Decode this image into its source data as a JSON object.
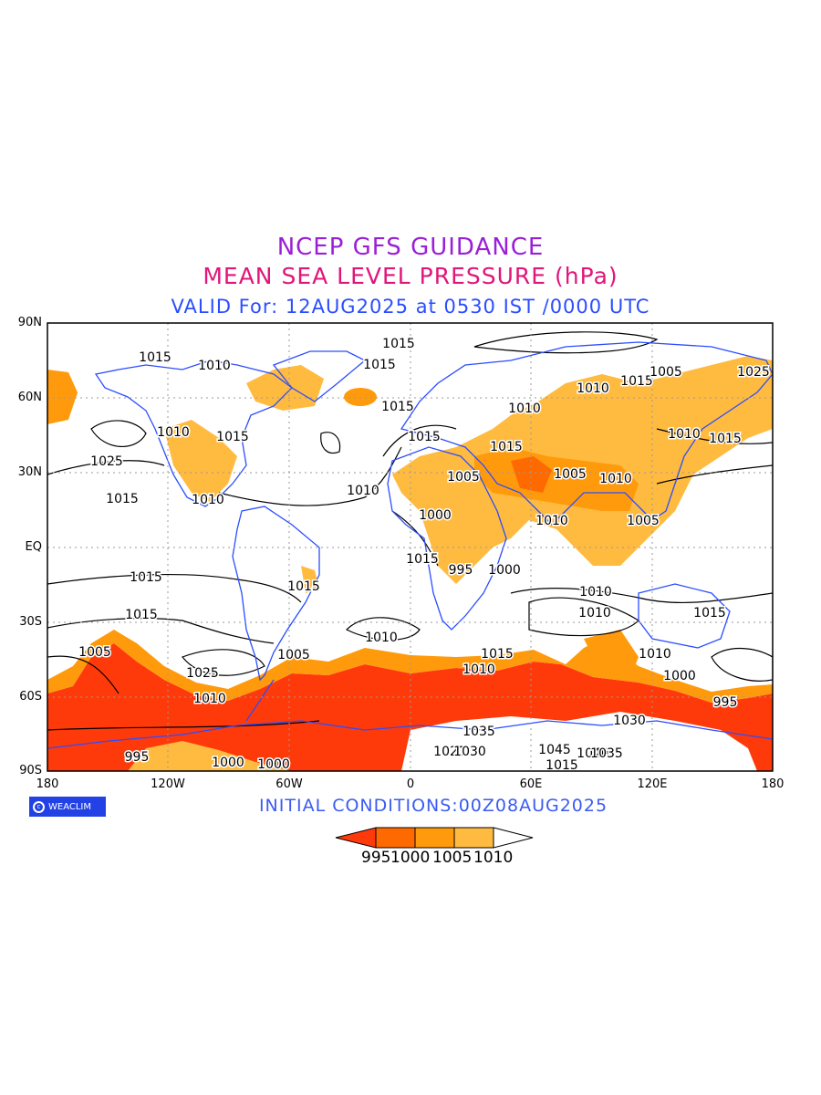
{
  "titles": {
    "line1": "NCEP GFS GUIDANCE",
    "line2": "MEAN SEA LEVEL PRESSURE (hPa)",
    "line3": "VALID For: 12AUG2025 at 0530 IST /0000 UTC"
  },
  "axes": {
    "lat_labels": [
      "90N",
      "60N",
      "30N",
      "EQ",
      "30S",
      "60S",
      "90S"
    ],
    "lon_labels": [
      "180",
      "120W",
      "60W",
      "0",
      "60E",
      "120E",
      "180"
    ]
  },
  "initial_conditions": "INITIAL CONDITIONS:00Z08AUG2025",
  "logo_text": "WEACLIM",
  "colorbar": {
    "labels": [
      "995",
      "1000",
      "1005",
      "1010"
    ],
    "colors": [
      "#ff3a0a",
      "#ff6a00",
      "#ff9a0c",
      "#ffbb40",
      "#ffffff"
    ]
  },
  "contour_labels": [
    "1015",
    "1015",
    "1010",
    "1025",
    "1015",
    "1015",
    "1015",
    "1010",
    "1015",
    "1010",
    "1010",
    "1015",
    "1005",
    "1010",
    "1015",
    "1015",
    "1005",
    "1015",
    "1005",
    "1025",
    "1010",
    "1000",
    "995",
    "1000",
    "1010",
    "1015",
    "1010",
    "1005",
    "1015",
    "1010",
    "1015",
    "1010",
    "1010",
    "1015",
    "1010",
    "1010",
    "1015",
    "1010",
    "1005",
    "1015",
    "1025",
    "1005",
    "1000",
    "995",
    "1030",
    "1035",
    "1045",
    "1015",
    "1021",
    "1030",
    "1040",
    "1035",
    "995",
    "1000",
    "1000",
    "1010"
  ]
}
